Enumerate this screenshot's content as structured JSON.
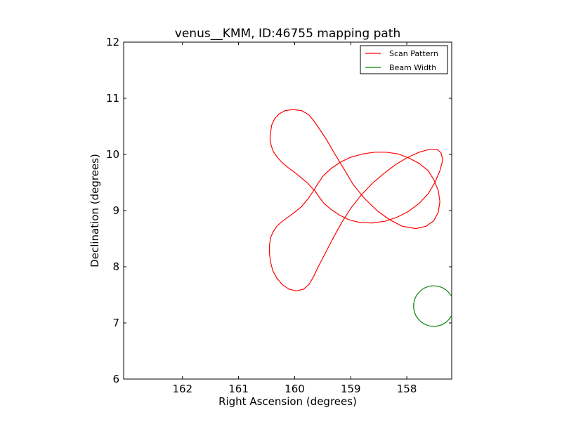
{
  "chart_data": {
    "type": "line",
    "title": "venus__KMM, ID:46755 mapping path",
    "xlabel": "Right Ascension (degrees)",
    "ylabel": "Declination (degrees)",
    "xlim": [
      163.05,
      157.2
    ],
    "ylim": [
      6,
      12
    ],
    "x_axis_inverted": true,
    "xticks": [
      162,
      161,
      160,
      159,
      158
    ],
    "yticks": [
      6,
      7,
      8,
      9,
      10,
      11,
      12
    ],
    "xtick_labels": [
      "162",
      "161",
      "160",
      "159",
      "158"
    ],
    "ytick_labels": [
      "6",
      "7",
      "8",
      "9",
      "10",
      "11",
      "12"
    ],
    "grid": false,
    "legend_position": "top-right",
    "series": [
      {
        "name": "Scan Pattern",
        "color": "#ff0000",
        "x": [
          159.66,
          159.77,
          159.89,
          160.0,
          160.11,
          160.22,
          160.31,
          160.38,
          160.42,
          160.44,
          160.43,
          160.41,
          160.36,
          160.28,
          160.17,
          160.03,
          159.88,
          159.75,
          159.66,
          159.57,
          159.43,
          159.28,
          159.12,
          158.96,
          158.76,
          158.52,
          158.31,
          158.08,
          157.84,
          157.66,
          157.52,
          157.44,
          157.41,
          157.44,
          157.52,
          157.62,
          157.78,
          157.97,
          158.16,
          158.37,
          158.57,
          158.78,
          159.0,
          159.19,
          159.35,
          159.49,
          159.58,
          159.66,
          159.76,
          159.88,
          160.0,
          160.11,
          160.22,
          160.31,
          160.38,
          160.43,
          160.45,
          160.45,
          160.43,
          160.39,
          160.32,
          160.22,
          160.1,
          159.97,
          159.84,
          159.74,
          159.66,
          159.58,
          159.45,
          159.31,
          159.16,
          159.0,
          158.82,
          158.62,
          158.41,
          158.2,
          157.98,
          157.78,
          157.6,
          157.46,
          157.39,
          157.36,
          157.41,
          157.5,
          157.62,
          157.79,
          157.98,
          158.18,
          158.39,
          158.62,
          158.85,
          159.04,
          159.2,
          159.35,
          159.48,
          159.57,
          159.65
        ],
        "y": [
          9.37,
          9.49,
          9.59,
          9.68,
          9.76,
          9.85,
          9.95,
          10.05,
          10.16,
          10.28,
          10.4,
          10.52,
          10.63,
          10.72,
          10.78,
          10.8,
          10.78,
          10.71,
          10.6,
          10.47,
          10.26,
          10.0,
          9.74,
          9.47,
          9.22,
          8.99,
          8.84,
          8.72,
          8.68,
          8.72,
          8.82,
          8.97,
          9.16,
          9.36,
          9.55,
          9.71,
          9.84,
          9.94,
          10.01,
          10.04,
          10.04,
          10.01,
          9.95,
          9.86,
          9.75,
          9.62,
          9.49,
          9.36,
          9.21,
          9.07,
          8.97,
          8.89,
          8.81,
          8.73,
          8.63,
          8.52,
          8.38,
          8.23,
          8.08,
          7.93,
          7.8,
          7.68,
          7.6,
          7.57,
          7.6,
          7.69,
          7.83,
          8.0,
          8.25,
          8.52,
          8.79,
          9.04,
          9.27,
          9.48,
          9.66,
          9.82,
          9.95,
          10.04,
          10.09,
          10.09,
          10.03,
          9.9,
          9.71,
          9.5,
          9.3,
          9.12,
          8.98,
          8.88,
          8.81,
          8.78,
          8.79,
          8.84,
          8.92,
          9.02,
          9.13,
          9.25,
          9.37
        ]
      },
      {
        "name": "Beam Width",
        "color": "#008000",
        "center": [
          157.52,
          7.3
        ],
        "radius": 0.36
      }
    ]
  }
}
